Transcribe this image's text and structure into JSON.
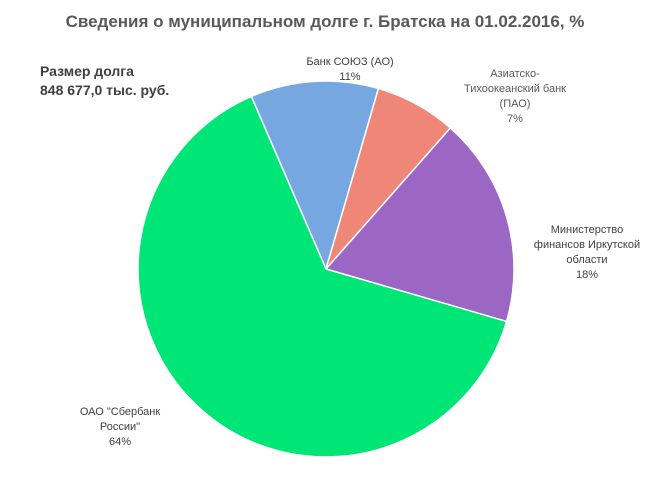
{
  "chart_data": {
    "type": "pie",
    "title": "Сведения о муниципальном долге г. Братска на 01.02.2016, %",
    "categories": [
      "Банк  СОЮЗ (АО)",
      "Азиатско-\nТихоокеанский  банк\n(ПАО)",
      "Министерство\nфинансов  Иркутской\nобласти",
      "ОАО \"Сбербанк\nРоссии\""
    ],
    "values": [
      11,
      7,
      18,
      64
    ],
    "percent_labels": [
      "11%",
      "7%",
      "18%",
      "64%"
    ],
    "colors": [
      "#76a7e0",
      "#ef8677",
      "#9c66c5",
      "#00e676"
    ]
  },
  "debt_info": {
    "line1": "Размер долга",
    "line2": "848 677,0 тыс. руб."
  }
}
